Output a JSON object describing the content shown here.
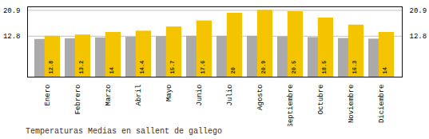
{
  "chart_data": {
    "type": "bar",
    "title": "Temperaturas Medias en sallent de gallego",
    "categories": [
      "Enero",
      "Febrero",
      "Marzo",
      "Abril",
      "Mayo",
      "Junio",
      "Julio",
      "Agosto",
      "Septiembre",
      "Octubre",
      "Noviembre",
      "Diciembre"
    ],
    "series": [
      {
        "color": "#AAAAAA",
        "values": [
          11.8,
          12.0,
          12.3,
          12.5,
          12.7,
          12.8,
          12.8,
          12.8,
          12.6,
          12.4,
          12.1,
          11.9
        ]
      },
      {
        "color": "#F5C400",
        "values": [
          12.8,
          13.2,
          14.0,
          14.4,
          15.7,
          17.6,
          20.0,
          20.9,
          20.5,
          18.5,
          16.3,
          14.0
        ],
        "data_labels": true
      }
    ],
    "ylim": [
      0,
      22.0
    ],
    "yticks": [
      12.8,
      20.9
    ],
    "grid": true
  }
}
